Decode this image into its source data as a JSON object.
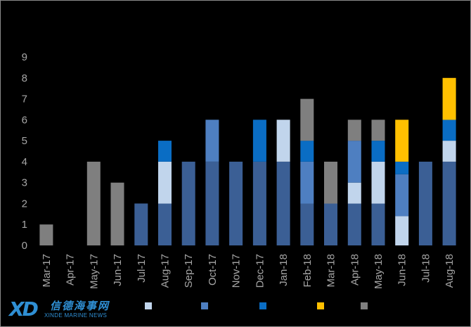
{
  "chart_data": {
    "type": "bar",
    "stacked": true,
    "categories": [
      "Mar-17",
      "Apr-17",
      "May-17",
      "Jun-17",
      "Jul-17",
      "Aug-17",
      "Sep-17",
      "Oct-17",
      "Nov-17",
      "Dec-17",
      "Jan-18",
      "Feb-18",
      "Mar-18",
      "Apr-18",
      "May-18",
      "Jun-18",
      "Jul-18",
      "Aug-18"
    ],
    "series": [
      {
        "color": "#7f7f7f",
        "values": [
          1,
          0,
          4,
          3,
          0,
          0,
          0,
          0,
          0,
          0,
          0,
          0,
          0,
          0,
          0,
          0,
          0,
          0
        ]
      },
      {
        "color": "#3b5f95",
        "values": [
          0,
          0,
          0,
          0,
          2,
          2,
          4,
          4,
          4,
          4,
          4,
          2,
          2,
          2,
          2,
          0,
          4,
          4
        ]
      },
      {
        "color": "#c1d5ec",
        "values": [
          0,
          0,
          0,
          0,
          0,
          2,
          0,
          0,
          0,
          0,
          2,
          0,
          0,
          1,
          2,
          1.4,
          0,
          1
        ]
      },
      {
        "color": "#4e7fc1",
        "values": [
          0,
          0,
          0,
          0,
          0,
          0,
          0,
          2,
          0,
          0,
          0,
          2,
          0,
          2,
          0,
          2,
          0,
          0
        ]
      },
      {
        "color": "#0a6dc4",
        "values": [
          0,
          0,
          0,
          0,
          0,
          1,
          0,
          0,
          0,
          2,
          0,
          1,
          0,
          0,
          1,
          0.6,
          0,
          1
        ]
      },
      {
        "color": "#7f7f7f",
        "values": [
          0,
          0,
          0,
          0,
          0,
          0,
          0,
          0,
          0,
          0,
          0,
          2,
          2,
          1,
          1,
          0,
          0,
          0
        ]
      },
      {
        "color": "#ffc000",
        "values": [
          0,
          0,
          0,
          0,
          0,
          0,
          0,
          0,
          0,
          0,
          0,
          0,
          0,
          0,
          0,
          2,
          0,
          2
        ]
      }
    ],
    "ylim": [
      0,
      9
    ],
    "yticks": [
      0,
      1,
      2,
      3,
      4,
      5,
      6,
      7,
      8,
      9
    ],
    "legend": {
      "placement": "bottom",
      "swatches": [
        "#c1d5ec",
        "#4e7fc1",
        "#0a6dc4",
        "#ffc000",
        "#7f7f7f"
      ]
    },
    "background": "#000000"
  },
  "logo": {
    "mark": "XD",
    "name_cn": "信德海事网",
    "name_en": "XINDE MARINE NEWS"
  }
}
